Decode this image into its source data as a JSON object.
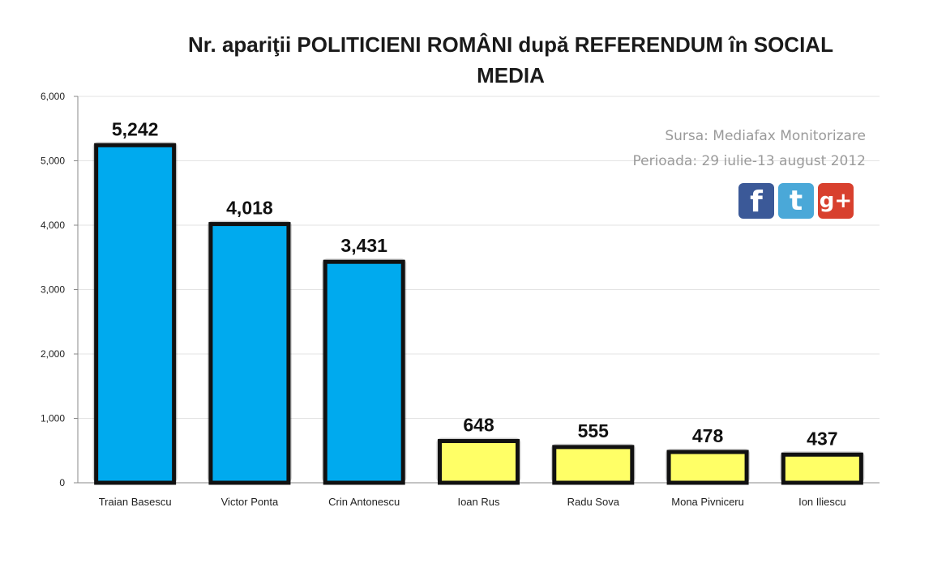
{
  "chart_data": {
    "type": "bar",
    "title": "Nr. apariţii POLITICIENI ROMÂNI după REFERENDUM în SOCIAL MEDIA",
    "categories": [
      "Traian Basescu",
      "Victor Ponta",
      "Crin Antonescu",
      "Ioan Rus",
      "Radu Sova",
      "Mona Pivniceru",
      "Ion Iliescu"
    ],
    "values": [
      5242,
      4018,
      3431,
      648,
      555,
      478,
      437
    ],
    "data_labels": [
      "5,242",
      "4,018",
      "3,431",
      "648",
      "555",
      "478",
      "437"
    ],
    "bar_colors": [
      "#00aaee",
      "#00aaee",
      "#00aaee",
      "#ffff66",
      "#ffff66",
      "#ffff66",
      "#ffff66"
    ],
    "yticks": [
      "0",
      "1,000",
      "2,000",
      "3,000",
      "4,000",
      "5,000",
      "6,000"
    ],
    "ylim": [
      0,
      6000
    ],
    "grid": true,
    "legend": "none",
    "annotations": [
      "Sursa: Mediafax Monitorizare",
      "Perioada: 29 iulie-13 august 2012"
    ]
  },
  "social_icons": [
    {
      "name": "facebook-icon",
      "glyph": "f",
      "color": "#3b5998"
    },
    {
      "name": "twitter-icon",
      "glyph": "t",
      "color": "#4aa8d8"
    },
    {
      "name": "google-plus-icon",
      "glyph": "g+",
      "color": "#d8402e"
    }
  ]
}
